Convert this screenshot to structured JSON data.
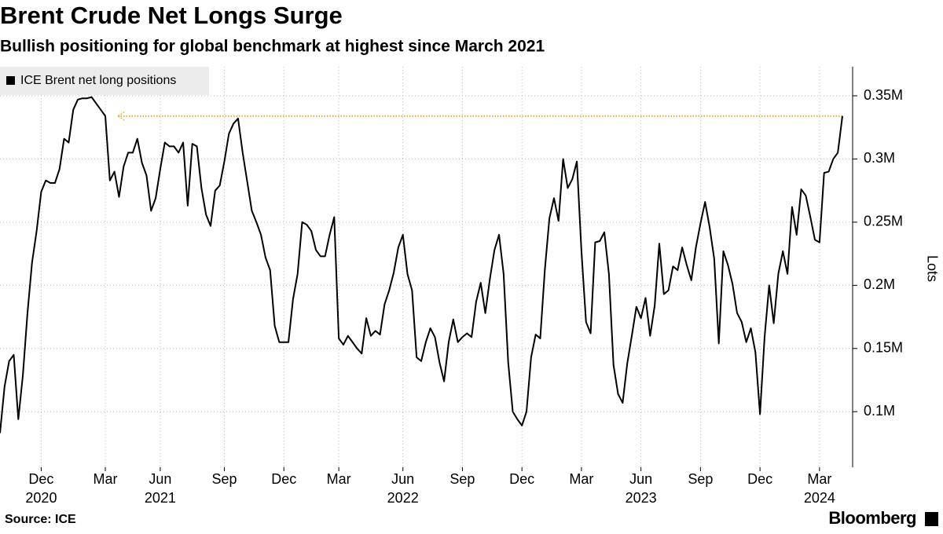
{
  "chart_data": {
    "type": "line",
    "title": "Brent Crude Net Longs Surge",
    "subtitle": "Bullish positioning for global benchmark at highest since March 2021",
    "source": "Source: ICE",
    "brand": "Bloomberg",
    "y_label": "Lots",
    "legend_position": "top-left",
    "grid": true,
    "categories": [
      null,
      null,
      null,
      null,
      null,
      null,
      null,
      null,
      null,
      "Dec",
      null,
      null,
      null,
      null,
      null,
      null,
      null,
      null,
      null,
      null,
      null,
      null,
      null,
      "Mar",
      null,
      null,
      null,
      null,
      null,
      null,
      null,
      null,
      null,
      null,
      null,
      "Jun",
      null,
      null,
      null,
      null,
      null,
      null,
      null,
      null,
      null,
      null,
      null,
      null,
      null,
      "Sep",
      null,
      null,
      null,
      null,
      null,
      null,
      null,
      null,
      null,
      null,
      null,
      null,
      "Dec",
      null,
      null,
      null,
      null,
      null,
      null,
      null,
      null,
      null,
      null,
      null,
      "Mar",
      null,
      null,
      null,
      null,
      null,
      null,
      null,
      null,
      null,
      null,
      null,
      null,
      null,
      "Jun",
      null,
      null,
      null,
      null,
      null,
      null,
      null,
      null,
      null,
      null,
      null,
      null,
      "Sep",
      null,
      null,
      null,
      null,
      null,
      null,
      null,
      null,
      null,
      null,
      null,
      null,
      "Dec",
      null,
      null,
      null,
      null,
      null,
      null,
      null,
      null,
      null,
      null,
      null,
      null,
      "Mar",
      null,
      null,
      null,
      null,
      null,
      null,
      null,
      null,
      null,
      null,
      null,
      null,
      "Jun",
      null,
      null,
      null,
      null,
      null,
      null,
      null,
      null,
      null,
      null,
      null,
      null,
      "Sep",
      null,
      null,
      null,
      null,
      null,
      null,
      null,
      null,
      null,
      null,
      null,
      null,
      "Dec",
      null,
      null,
      null,
      null,
      null,
      null,
      null,
      null,
      null,
      null,
      null,
      null,
      "Mar",
      null,
      null,
      null,
      null,
      null
    ],
    "years": [
      null,
      null,
      null,
      null,
      null,
      null,
      null,
      null,
      null,
      "2020",
      null,
      null,
      null,
      null,
      null,
      null,
      null,
      null,
      null,
      null,
      null,
      null,
      null,
      null,
      null,
      null,
      null,
      null,
      null,
      null,
      null,
      null,
      null,
      null,
      null,
      "2021",
      null,
      null,
      null,
      null,
      null,
      null,
      null,
      null,
      null,
      null,
      null,
      null,
      null,
      null,
      null,
      null,
      null,
      null,
      null,
      null,
      null,
      null,
      null,
      null,
      null,
      null,
      null,
      null,
      null,
      null,
      null,
      null,
      null,
      null,
      null,
      null,
      null,
      null,
      null,
      null,
      null,
      null,
      null,
      null,
      null,
      null,
      null,
      null,
      null,
      null,
      null,
      null,
      "2022",
      null,
      null,
      null,
      null,
      null,
      null,
      null,
      null,
      null,
      null,
      null,
      null,
      null,
      null,
      null,
      null,
      null,
      null,
      null,
      null,
      null,
      null,
      null,
      null,
      null,
      null,
      null,
      null,
      null,
      null,
      null,
      null,
      null,
      null,
      null,
      null,
      null,
      null,
      null,
      null,
      null,
      null,
      null,
      null,
      null,
      null,
      null,
      null,
      null,
      null,
      null,
      "2023",
      null,
      null,
      null,
      null,
      null,
      null,
      null,
      null,
      null,
      null,
      null,
      null,
      null,
      null,
      null,
      null,
      null,
      null,
      null,
      null,
      null,
      null,
      null,
      null,
      null,
      null,
      null,
      null,
      null,
      null,
      null,
      null,
      null,
      null,
      null,
      null,
      null,
      null,
      "2024",
      null,
      null,
      null,
      null,
      null
    ],
    "series": [
      {
        "name": "ICE Brent net long positions",
        "color": "#000000",
        "values": [
          83000,
          120000,
          140000,
          145000,
          94000,
          129000,
          178000,
          218000,
          243000,
          274000,
          283000,
          281000,
          281000,
          292000,
          316000,
          313000,
          339000,
          347000,
          348000,
          348000,
          349000,
          344000,
          339000,
          334000,
          283000,
          290000,
          270000,
          294000,
          305000,
          305000,
          316000,
          297000,
          287000,
          259000,
          269000,
          292000,
          313000,
          310000,
          310000,
          305000,
          313000,
          263000,
          312000,
          310000,
          277000,
          256000,
          247000,
          275000,
          279000,
          298000,
          320000,
          328000,
          332000,
          305000,
          282000,
          259000,
          250000,
          240000,
          222000,
          212000,
          168000,
          155000,
          155000,
          155000,
          189000,
          209000,
          250000,
          248000,
          243000,
          228000,
          223000,
          223000,
          240000,
          254000,
          158000,
          153000,
          160000,
          155000,
          150000,
          146000,
          174000,
          160000,
          164000,
          161000,
          185000,
          196000,
          210000,
          230000,
          240000,
          209000,
          196000,
          143000,
          140000,
          155000,
          166000,
          159000,
          139000,
          124000,
          155000,
          173000,
          155000,
          159000,
          162000,
          159000,
          187000,
          202000,
          178000,
          205000,
          228000,
          240000,
          209000,
          139000,
          100000,
          94000,
          89000,
          100000,
          143000,
          161000,
          158000,
          212000,
          253000,
          269000,
          251000,
          300000,
          277000,
          284000,
          298000,
          227000,
          171000,
          162000,
          234000,
          235000,
          242000,
          209000,
          137000,
          114000,
          107000,
          138000,
          160000,
          183000,
          174000,
          190000,
          160000,
          184000,
          233000,
          193000,
          196000,
          215000,
          212000,
          230000,
          216000,
          204000,
          230000,
          249000,
          266000,
          246000,
          221000,
          154000,
          227000,
          216000,
          201000,
          178000,
          171000,
          155000,
          166000,
          147000,
          98000,
          159000,
          200000,
          170000,
          209000,
          227000,
          209000,
          262000,
          240000,
          276000,
          271000,
          254000,
          236000,
          234000,
          289000,
          290000,
          300000,
          305000,
          334000
        ]
      }
    ],
    "reference_line": {
      "value": 334000,
      "color": "#f5a623"
    },
    "ylim": [
      56000,
      373000
    ],
    "yticks": [
      {
        "value": 100000,
        "label": "0.1M"
      },
      {
        "value": 150000,
        "label": "0.15M"
      },
      {
        "value": 200000,
        "label": "0.2M"
      },
      {
        "value": 250000,
        "label": "0.25M"
      },
      {
        "value": 300000,
        "label": "0.3M"
      },
      {
        "value": 350000,
        "label": "0.35M"
      }
    ]
  }
}
